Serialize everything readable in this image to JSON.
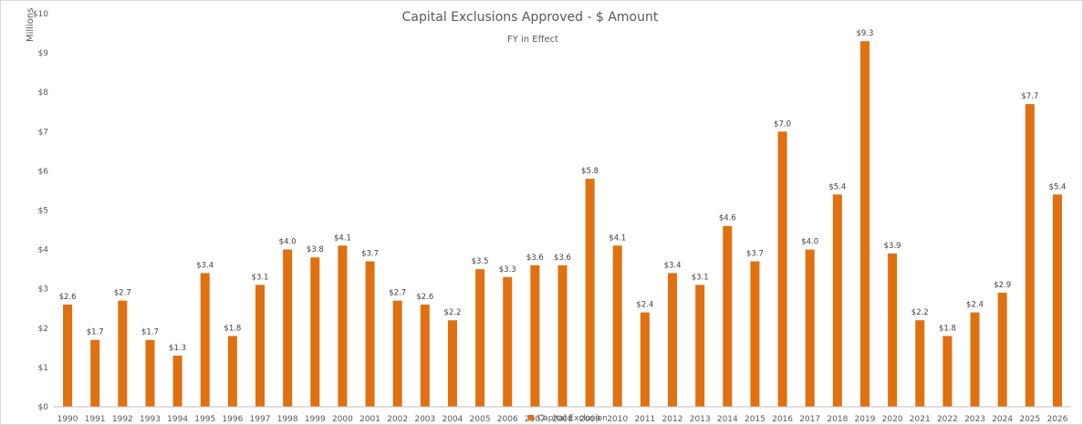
{
  "chart_data": {
    "type": "bar",
    "title": "Capital Exclusions Approved - $ Amount",
    "subtitle": "FY in Effect",
    "ylabel": "Millions",
    "xlabel": "",
    "ylim": [
      0,
      10
    ],
    "yticks": [
      "$0",
      "$1",
      "$2",
      "$3",
      "$4",
      "$5",
      "$6",
      "$7",
      "$8",
      "$9",
      "$10"
    ],
    "categories": [
      "1990",
      "1991",
      "1992",
      "1993",
      "1994",
      "1995",
      "1996",
      "1997",
      "1998",
      "1999",
      "2000",
      "2001",
      "2002",
      "2003",
      "2004",
      "2005",
      "2006",
      "2007",
      "2008",
      "2009",
      "2010",
      "2011",
      "2012",
      "2013",
      "2014",
      "2015",
      "2016",
      "2017",
      "2018",
      "2019",
      "2020",
      "2021",
      "2022",
      "2023",
      "2024",
      "2025",
      "2026"
    ],
    "series": [
      {
        "name": "Capital Exclusion",
        "color": "#E07010",
        "values": [
          2.6,
          1.7,
          2.7,
          1.7,
          1.3,
          3.4,
          1.8,
          3.1,
          4.0,
          3.8,
          4.1,
          3.7,
          2.7,
          2.6,
          2.2,
          3.5,
          3.3,
          3.6,
          3.6,
          5.8,
          4.1,
          2.4,
          3.4,
          3.1,
          4.6,
          3.7,
          7.0,
          4.0,
          5.4,
          9.3,
          3.9,
          2.2,
          1.8,
          2.4,
          2.9,
          7.7,
          5.4
        ],
        "labels": [
          "$2.6",
          "$1.7",
          "$2.7",
          "$1.7",
          "$1.3",
          "$3.4",
          "$1.8",
          "$3.1",
          "$4.0",
          "$3.8",
          "$4.1",
          "$3.7",
          "$2.7",
          "$2.6",
          "$2.2",
          "$3.5",
          "$3.3",
          "$3.6",
          "$3.6",
          "$5.8",
          "$4.1",
          "$2.4",
          "$3.4",
          "$3.1",
          "$4.6",
          "$3.7",
          "$7.0",
          "$4.0",
          "$5.4",
          "$9.3",
          "$3.9",
          "$2.2",
          "$1.8",
          "$2.4",
          "$2.9",
          "$7.7",
          "$5.4"
        ]
      }
    ],
    "grid": false,
    "legend": "bottom-center"
  }
}
